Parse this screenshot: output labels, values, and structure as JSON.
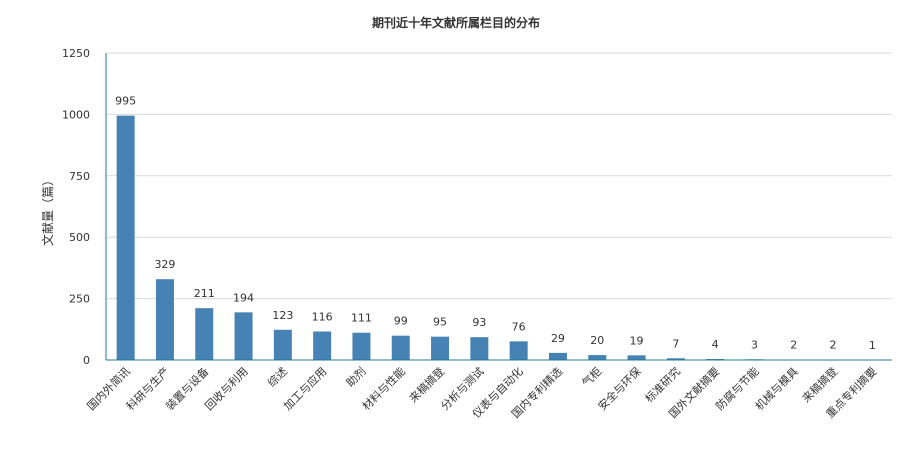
{
  "chart_data": {
    "type": "bar",
    "title": "期刊近十年文献所属栏目的分布",
    "xlabel": "",
    "ylabel": "文献量（篇）",
    "ylim": [
      0,
      1250
    ],
    "yticks": [
      0,
      250,
      500,
      750,
      1000,
      1250
    ],
    "grid": true,
    "categories": [
      "国内外简讯",
      "科研与生产",
      "装置与设备",
      "回收与利用",
      "综述",
      "加工与应用",
      "助剂",
      "材料与性能",
      "来稿摘登",
      "分析与测试",
      "仪表与自动化",
      "国内专利精选",
      "气柜",
      "安全与环保",
      "标准研究",
      "国外文献摘要",
      "防腐与节能",
      "机械与模具",
      "来稿摘登",
      "重点专利摘要"
    ],
    "values": [
      995,
      329,
      211,
      194,
      123,
      116,
      111,
      99,
      95,
      93,
      76,
      29,
      20,
      19,
      7,
      4,
      3,
      2,
      2,
      1
    ],
    "bar_color": "#4682b4"
  }
}
